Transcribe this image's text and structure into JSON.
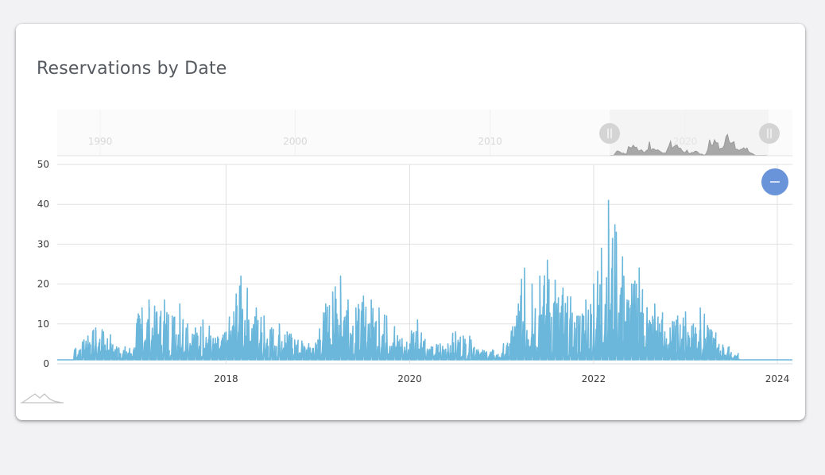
{
  "chart_data": {
    "type": "line",
    "title": "Reservations by Date",
    "xlabel": "",
    "ylabel": "",
    "x_range": [
      "2016-03-01",
      "2024-03-01"
    ],
    "y_range": [
      0,
      50
    ],
    "y_ticks": [
      0,
      10,
      20,
      30,
      40,
      50
    ],
    "x_ticks": [
      "2018",
      "2020",
      "2022",
      "2024"
    ],
    "grid": true,
    "legend": "none",
    "color": "#6bb7dc",
    "series": [
      {
        "x": [
          "2016-03-01",
          "2016-05-01",
          "2016-06-15",
          "2016-07-01",
          "2016-08-01",
          "2016-09-01",
          "2016-10-01",
          "2016-11-01",
          "2016-12-01",
          "2017-01-01",
          "2017-02-01",
          "2017-03-01",
          "2017-04-01",
          "2017-05-01",
          "2017-06-01",
          "2017-07-01",
          "2017-08-01",
          "2017-09-01",
          "2017-10-01",
          "2017-11-01",
          "2017-12-01",
          "2018-01-01",
          "2018-02-01",
          "2018-03-01",
          "2018-04-01",
          "2018-05-01",
          "2018-06-01",
          "2018-07-01",
          "2018-08-01",
          "2018-09-01",
          "2018-10-01",
          "2018-11-01",
          "2018-12-01",
          "2019-01-01",
          "2019-02-01",
          "2019-03-01",
          "2019-04-01",
          "2019-05-01",
          "2019-06-01",
          "2019-07-01",
          "2019-08-01",
          "2019-09-01",
          "2019-10-01",
          "2019-11-01",
          "2019-12-01",
          "2020-01-01",
          "2020-02-01",
          "2020-03-01",
          "2020-04-01",
          "2020-05-01",
          "2020-06-01",
          "2020-07-01",
          "2020-08-01",
          "2020-09-01",
          "2020-10-01",
          "2020-11-01",
          "2020-12-01",
          "2021-01-01",
          "2021-02-01",
          "2021-03-01",
          "2021-04-01",
          "2021-05-01",
          "2021-06-01",
          "2021-07-01",
          "2021-08-01",
          "2021-09-01",
          "2021-10-01",
          "2021-11-01",
          "2021-12-01",
          "2022-01-01",
          "2022-02-01",
          "2022-03-01",
          "2022-04-01",
          "2022-05-01",
          "2022-06-01",
          "2022-07-01",
          "2022-08-01",
          "2022-09-01",
          "2022-10-01",
          "2022-11-01",
          "2022-12-01",
          "2023-01-01",
          "2023-02-01",
          "2023-03-01",
          "2023-04-01",
          "2023-05-01",
          "2023-06-01",
          "2023-07-01",
          "2023-08-01",
          "2023-09-01",
          "2023-10-01",
          "2023-11-01",
          "2023-12-01",
          "2024-01-01",
          "2024-03-01"
        ],
        "y": [
          1,
          1,
          6,
          7,
          9,
          8,
          5,
          4,
          3,
          4,
          14,
          16,
          13,
          16,
          12,
          15,
          10,
          9,
          11,
          7,
          6,
          8,
          13,
          22,
          11,
          14,
          12,
          9,
          10,
          8,
          6,
          5,
          4,
          6,
          15,
          18,
          22,
          16,
          14,
          17,
          16,
          14,
          12,
          8,
          6,
          5,
          11,
          4,
          3,
          5,
          5,
          8,
          7,
          6,
          3,
          3,
          2,
          1,
          5,
          12,
          24,
          20,
          22,
          26,
          21,
          19,
          14,
          12,
          16,
          20,
          29,
          41,
          33,
          22,
          20,
          24,
          14,
          15,
          10,
          9,
          12,
          13,
          10,
          14,
          9,
          5,
          4,
          2,
          1,
          1,
          1,
          1,
          1,
          1,
          1
        ]
      }
    ],
    "navigator": {
      "x_ticks": [
        "1990",
        "2000",
        "2010",
        "2020"
      ],
      "selection": [
        "2016-03-01",
        "2024-03-01"
      ],
      "area_color": "#a8a8a8"
    },
    "icons": {
      "reset_button": "minus-icon",
      "chart_type_toggle": "area-mountain-icon",
      "navigator_handles": "grip-handle-icon"
    }
  }
}
